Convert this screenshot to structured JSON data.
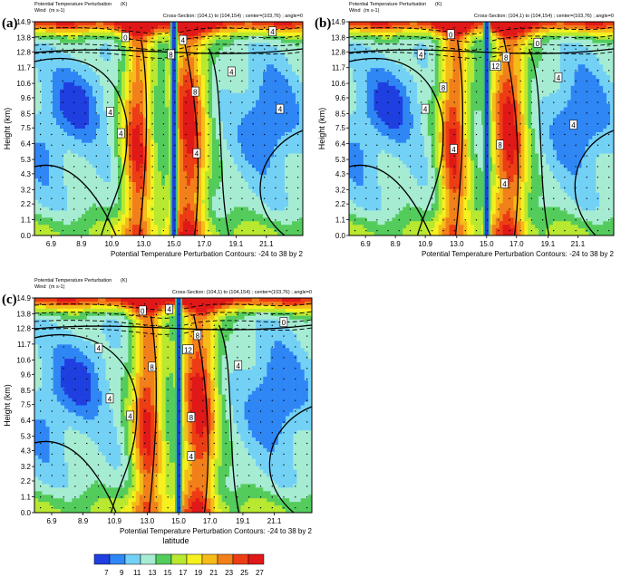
{
  "chart_data": {
    "type": "heatmap",
    "header": {
      "field_label": "Potential Temperature Perturbation",
      "field_unit": "(K)",
      "wind_label": "Wind",
      "wind_unit": "(m s-1)",
      "cross_section": "Cross-Section: (104,1) to (104,154) ; center=(103,76) ; angle=0"
    },
    "ylabel": "Height (km)",
    "contour_caption": "Potential Temperature Perturbation Contours: -24 to 38 by 2",
    "y_ticks": [
      "0.0",
      "1.1",
      "2.2",
      "3.2",
      "4.3",
      "5.3",
      "6.4",
      "7.5",
      "8.5",
      "9.6",
      "10.6",
      "11.7",
      "12.8",
      "13.8",
      "14.9"
    ],
    "x_ticks": [
      "6.9",
      "8.9",
      "10.9",
      "13.0",
      "15.0",
      "17.0",
      "19.1",
      "21.1"
    ],
    "xlim": [
      5.8,
      23.5
    ],
    "ylim": [
      0.0,
      14.9
    ],
    "colorbar": {
      "label": "latitude",
      "levels": [
        "7",
        "9",
        "11",
        "13",
        "15",
        "17",
        "19",
        "21",
        "23",
        "25",
        "27"
      ],
      "colors": [
        "#1f3fe0",
        "#2f86f5",
        "#73d1f5",
        "#a6ecd2",
        "#54cc5c",
        "#b8e830",
        "#f5f01e",
        "#f5bc19",
        "#f2801a",
        "#ed3d14",
        "#e01818"
      ]
    },
    "panels": [
      {
        "label": "(a)",
        "cores": [
          12.6,
          16.0
        ],
        "contour_labels": [
          {
            "text": "0",
            "x": 11.8,
            "y": 13.8
          },
          {
            "text": "4",
            "x": 15.6,
            "y": 13.6
          },
          {
            "text": "4",
            "x": 21.5,
            "y": 14.2
          },
          {
            "text": "8",
            "x": 14.8,
            "y": 12.6
          },
          {
            "text": "4",
            "x": 18.8,
            "y": 11.4
          },
          {
            "text": "8",
            "x": 16.4,
            "y": 10.0
          },
          {
            "text": "4",
            "x": 10.8,
            "y": 8.6
          },
          {
            "text": "4",
            "x": 22.0,
            "y": 8.8
          },
          {
            "text": "4",
            "x": 11.5,
            "y": 7.1
          },
          {
            "text": "4",
            "x": 16.5,
            "y": 5.7
          }
        ]
      },
      {
        "label": "(b)",
        "cores": [
          12.8,
          16.5
        ],
        "contour_labels": [
          {
            "text": "0",
            "x": 12.6,
            "y": 14.0
          },
          {
            "text": "0",
            "x": 18.4,
            "y": 13.4
          },
          {
            "text": "12",
            "x": 15.6,
            "y": 11.8
          },
          {
            "text": "8",
            "x": 16.3,
            "y": 12.4
          },
          {
            "text": "4",
            "x": 10.6,
            "y": 12.6
          },
          {
            "text": "8",
            "x": 12.1,
            "y": 10.3
          },
          {
            "text": "4",
            "x": 19.8,
            "y": 11.0
          },
          {
            "text": "4",
            "x": 10.9,
            "y": 8.8
          },
          {
            "text": "4",
            "x": 20.8,
            "y": 7.7
          },
          {
            "text": "4",
            "x": 12.8,
            "y": 6.0
          },
          {
            "text": "8",
            "x": 15.9,
            "y": 6.3
          },
          {
            "text": "4",
            "x": 16.2,
            "y": 3.6
          }
        ]
      },
      {
        "label": "(c)",
        "cores": [
          13.0,
          16.3
        ],
        "contour_labels": [
          {
            "text": "0",
            "x": 12.7,
            "y": 14.0
          },
          {
            "text": "4",
            "x": 14.4,
            "y": 14.1
          },
          {
            "text": "0",
            "x": 21.7,
            "y": 13.2
          },
          {
            "text": "8",
            "x": 16.2,
            "y": 12.3
          },
          {
            "text": "12",
            "x": 15.6,
            "y": 11.3
          },
          {
            "text": "4",
            "x": 9.9,
            "y": 11.4
          },
          {
            "text": "8",
            "x": 13.3,
            "y": 10.1
          },
          {
            "text": "4",
            "x": 18.8,
            "y": 10.2
          },
          {
            "text": "4",
            "x": 10.6,
            "y": 7.9
          },
          {
            "text": "4",
            "x": 11.9,
            "y": 6.7
          },
          {
            "text": "8",
            "x": 15.8,
            "y": 6.6
          },
          {
            "text": "4",
            "x": 15.8,
            "y": 3.9
          }
        ]
      }
    ]
  }
}
